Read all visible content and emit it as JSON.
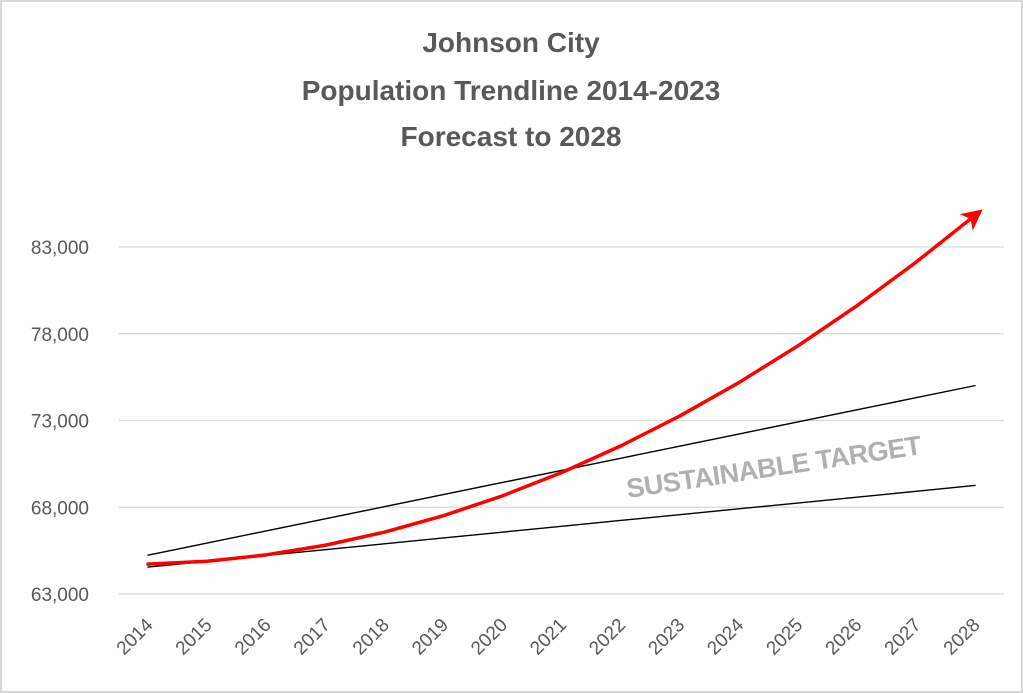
{
  "chart_data": {
    "type": "line",
    "title": [
      "Johnson City",
      "Population Trendline 2014-2023",
      "Forecast to 2028"
    ],
    "xlabel": "",
    "ylabel": "",
    "x": [
      "2014",
      "2015",
      "2016",
      "2017",
      "2018",
      "2019",
      "2020",
      "2021",
      "2022",
      "2023",
      "2024",
      "2025",
      "2026",
      "2027",
      "2028"
    ],
    "ylim": [
      63000,
      83000
    ],
    "yticks": [
      63000,
      68000,
      73000,
      78000,
      83000
    ],
    "ytick_labels": [
      "63,000",
      "68,000",
      "73,000",
      "78,000",
      "83,000"
    ],
    "grid": true,
    "legend": "none",
    "series": [
      {
        "name": "Population trendline (forecast)",
        "color": "#ff0000",
        "style": "thick curve with arrowhead",
        "values": [
          64720,
          64889,
          65253,
          65811,
          66565,
          67514,
          68657,
          69995,
          71529,
          73257,
          75180,
          77298,
          79611,
          82119,
          84820
        ]
      },
      {
        "name": "Sustainable target upper bound",
        "color": "#000000",
        "style": "thin line",
        "values": [
          65240,
          65938,
          66636,
          67334,
          68031,
          68729,
          69427,
          70125,
          70823,
          71521,
          72219,
          72917,
          73614,
          74312,
          75010
        ]
      },
      {
        "name": "Sustainable target lower bound",
        "color": "#000000",
        "style": "thin line",
        "values": [
          64550,
          64886,
          65222,
          65557,
          65893,
          66229,
          66565,
          66901,
          67237,
          67573,
          67909,
          68244,
          68580,
          68916,
          69260
        ]
      }
    ],
    "annotations": [
      {
        "text": "SUSTAINABLE TARGET",
        "color": "#b0b0b0"
      }
    ]
  }
}
